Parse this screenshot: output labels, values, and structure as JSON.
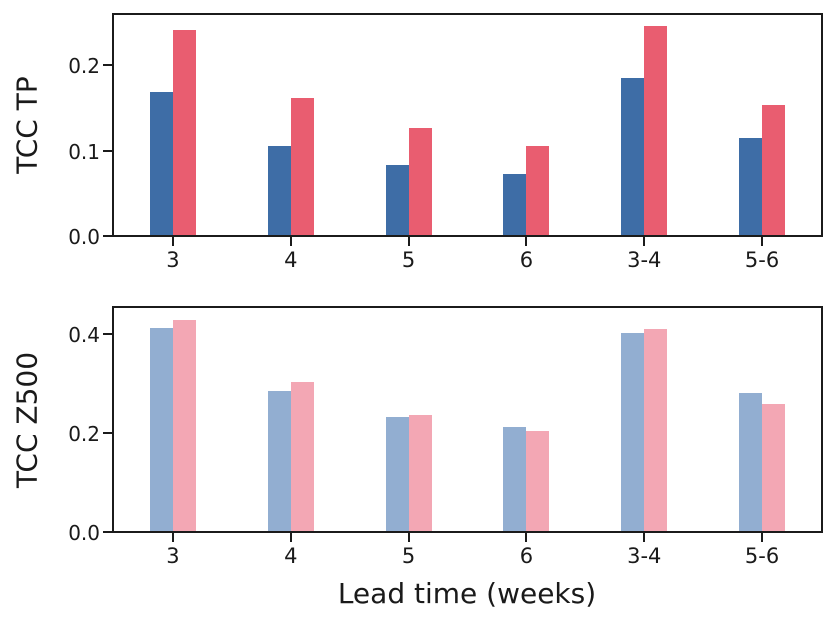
{
  "figure": {
    "xlabel": "Lead time (weeks)",
    "background": "#ffffff",
    "text_color": "#1a1a1a",
    "spine_color": "#1b1b1b"
  },
  "chart_data": [
    {
      "type": "bar",
      "panel": "top",
      "title": "",
      "ylabel": "TCC TP",
      "xlabel": "",
      "categories": [
        "3",
        "4",
        "5",
        "6",
        "3-4",
        "5-6"
      ],
      "series": [
        {
          "name": "dark-blue",
          "color": "#3e6da6",
          "values": [
            0.168,
            0.105,
            0.082,
            0.072,
            0.184,
            0.114
          ]
        },
        {
          "name": "red",
          "color": "#e95d70",
          "values": [
            0.24,
            0.161,
            0.126,
            0.105,
            0.245,
            0.152
          ]
        }
      ],
      "yticks": [
        0.0,
        0.1,
        0.2
      ],
      "ytick_labels": [
        "0.0",
        "0.1",
        "0.2"
      ],
      "ylim": [
        0,
        0.258
      ],
      "grid": false,
      "legend": "none"
    },
    {
      "type": "bar",
      "panel": "bottom",
      "title": "",
      "ylabel": "TCC Z500",
      "xlabel": "Lead time (weeks)",
      "categories": [
        "3",
        "4",
        "5",
        "6",
        "3-4",
        "5-6"
      ],
      "series": [
        {
          "name": "light-blue",
          "color": "#92aed1",
          "values": [
            0.41,
            0.283,
            0.231,
            0.21,
            0.4,
            0.279
          ]
        },
        {
          "name": "light-pink",
          "color": "#f3a7b4",
          "values": [
            0.425,
            0.3,
            0.235,
            0.201,
            0.407,
            0.257
          ]
        }
      ],
      "yticks": [
        0.0,
        0.2,
        0.4
      ],
      "ytick_labels": [
        "0.0",
        "0.2",
        "0.4"
      ],
      "ylim": [
        0,
        0.45
      ],
      "grid": false,
      "legend": "none"
    }
  ]
}
